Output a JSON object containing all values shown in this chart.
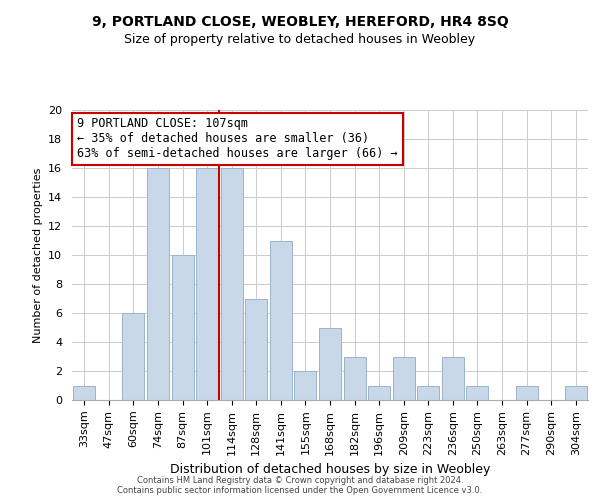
{
  "title": "9, PORTLAND CLOSE, WEOBLEY, HEREFORD, HR4 8SQ",
  "subtitle": "Size of property relative to detached houses in Weobley",
  "xlabel": "Distribution of detached houses by size in Weobley",
  "ylabel": "Number of detached properties",
  "footer_line1": "Contains HM Land Registry data © Crown copyright and database right 2024.",
  "footer_line2": "Contains public sector information licensed under the Open Government Licence v3.0.",
  "bar_labels": [
    "33sqm",
    "47sqm",
    "60sqm",
    "74sqm",
    "87sqm",
    "101sqm",
    "114sqm",
    "128sqm",
    "141sqm",
    "155sqm",
    "168sqm",
    "182sqm",
    "196sqm",
    "209sqm",
    "223sqm",
    "236sqm",
    "250sqm",
    "263sqm",
    "277sqm",
    "290sqm",
    "304sqm"
  ],
  "bar_values": [
    1,
    0,
    6,
    16,
    10,
    16,
    16,
    7,
    11,
    2,
    5,
    3,
    1,
    3,
    1,
    3,
    1,
    0,
    1,
    0,
    1
  ],
  "bar_color": "#c8d8e8",
  "bar_edge_color": "#9ab4cc",
  "vline_x": 6,
  "vline_color": "#cc0000",
  "annotation_text": "9 PORTLAND CLOSE: 107sqm\n← 35% of detached houses are smaller (36)\n63% of semi-detached houses are larger (66) →",
  "annotation_box_color": "#ffffff",
  "annotation_box_edge": "#cc0000",
  "ylim": [
    0,
    20
  ],
  "yticks": [
    0,
    2,
    4,
    6,
    8,
    10,
    12,
    14,
    16,
    18,
    20
  ],
  "bg_color": "#ffffff",
  "grid_color": "#cccccc",
  "title_fontsize": 10,
  "subtitle_fontsize": 9,
  "ylabel_fontsize": 8,
  "xlabel_fontsize": 9,
  "tick_fontsize": 8
}
